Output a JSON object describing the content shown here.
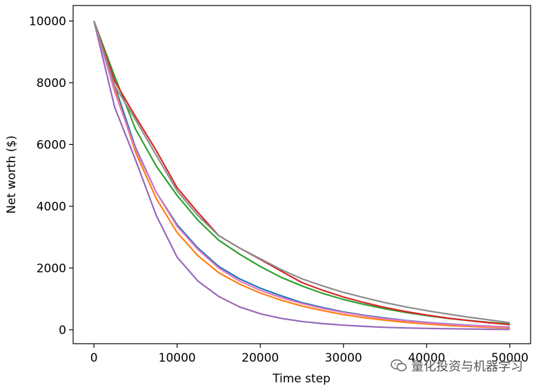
{
  "chart_data": {
    "type": "line",
    "title": "",
    "xlabel": "Time step",
    "ylabel": "Net worth ($)",
    "xlim": [
      -2500,
      52500
    ],
    "ylim": [
      -450,
      10500
    ],
    "x_ticks": [
      0,
      10000,
      20000,
      30000,
      40000,
      50000
    ],
    "x_tick_labels": [
      "0",
      "10000",
      "20000",
      "30000",
      "40000",
      "50000"
    ],
    "y_ticks": [
      0,
      2000,
      4000,
      6000,
      8000,
      10000
    ],
    "y_tick_labels": [
      "0",
      "2000",
      "4000",
      "6000",
      "8000",
      "10000"
    ],
    "grid": false,
    "legend": "none",
    "x": [
      0,
      2500,
      5000,
      7500,
      10000,
      12500,
      15000,
      17500,
      20000,
      22500,
      25000,
      27500,
      30000,
      32500,
      35000,
      37500,
      40000,
      42500,
      45000,
      47500,
      50000
    ],
    "series": [
      {
        "color": "#1f77b4",
        "values": [
          10000,
          7900,
          5900,
          4450,
          3400,
          2650,
          2050,
          1650,
          1350,
          1100,
          880,
          720,
          580,
          470,
          380,
          300,
          240,
          190,
          150,
          115,
          90
        ]
      },
      {
        "color": "#ff7f0e",
        "values": [
          10000,
          7800,
          5750,
          4250,
          3150,
          2400,
          1850,
          1480,
          1190,
          960,
          770,
          620,
          490,
          390,
          310,
          240,
          190,
          140,
          110,
          80,
          60
        ]
      },
      {
        "color": "#2ca02c",
        "values": [
          10000,
          8200,
          6500,
          5300,
          4350,
          3550,
          2900,
          2450,
          2050,
          1700,
          1420,
          1180,
          980,
          820,
          680,
          560,
          460,
          370,
          300,
          240,
          190
        ]
      },
      {
        "color": "#d62728",
        "values": [
          10000,
          8050,
          6900,
          5800,
          4600,
          3800,
          3050,
          2650,
          2280,
          1900,
          1530,
          1280,
          1060,
          880,
          720,
          590,
          480,
          380,
          300,
          230,
          170
        ]
      },
      {
        "color": "#9467bd",
        "values": [
          10000,
          7200,
          5500,
          3700,
          2350,
          1580,
          1080,
          740,
          520,
          370,
          270,
          200,
          150,
          110,
          80,
          60,
          45,
          35,
          25,
          18,
          12
        ]
      },
      {
        "color": "#e377c2",
        "values": [
          10000,
          7700,
          5850,
          4450,
          3350,
          2600,
          2000,
          1580,
          1280,
          1040,
          850,
          690,
          560,
          450,
          360,
          290,
          230,
          180,
          140,
          110,
          80
        ]
      },
      {
        "color": "#8c8c8c",
        "values": [
          10000,
          7900,
          6800,
          5650,
          4500,
          3700,
          3050,
          2650,
          2300,
          1950,
          1650,
          1420,
          1210,
          1040,
          880,
          740,
          620,
          510,
          410,
          320,
          230
        ]
      }
    ]
  },
  "watermark": {
    "icon": "wechat-icon",
    "text": "量化投资与机器学习"
  }
}
